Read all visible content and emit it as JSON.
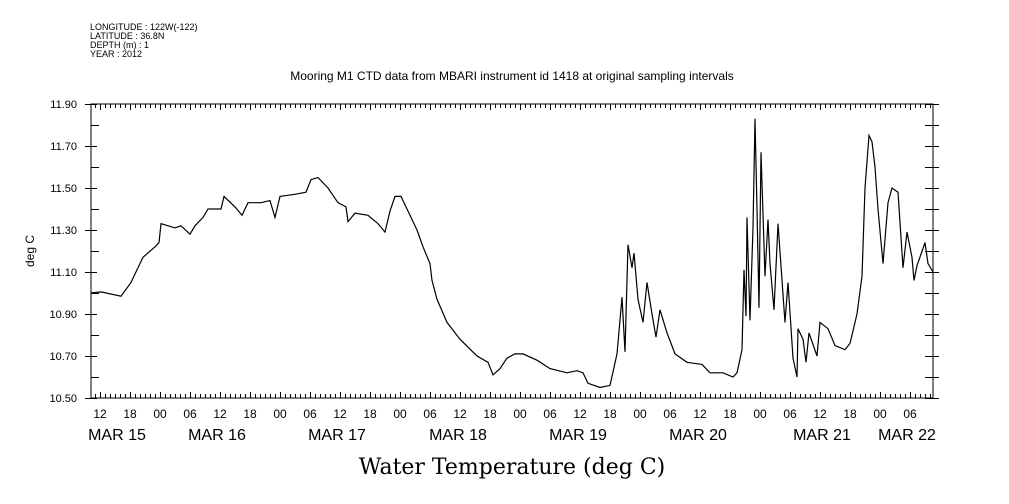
{
  "meta": {
    "longitude": "LONGITUDE : 122W(-122)",
    "latitude": "LATITUDE : 36.8N",
    "depth": "DEPTH (m) : 1",
    "year": "YEAR : 2012"
  },
  "chart_data": {
    "type": "line",
    "title": "Mooring M1 CTD data from MBARI instrument id 1418 at original sampling intervals",
    "xlabel": "Water Temperature (deg C)",
    "ylabel": "deg C",
    "x_units": "hours since MAR 15 00:00 (2012)",
    "xlim": [
      10.2,
      178.6
    ],
    "ylim": [
      10.5,
      11.9
    ],
    "y_ticks": [
      "10.50",
      "10.70",
      "10.90",
      "11.10",
      "11.30",
      "11.50",
      "11.70",
      "11.90"
    ],
    "y_tick_values": [
      10.5,
      10.7,
      10.9,
      11.1,
      11.3,
      11.5,
      11.7,
      11.9
    ],
    "x_hour_tick_values": [
      12,
      18,
      24,
      30,
      36,
      42,
      48,
      54,
      60,
      66,
      72,
      78,
      84,
      90,
      96,
      102,
      108,
      114,
      120,
      126,
      132,
      138,
      144,
      150,
      156,
      162,
      168,
      174
    ],
    "x_hour_ticks": [
      "12",
      "18",
      "00",
      "06",
      "12",
      "18",
      "00",
      "06",
      "12",
      "18",
      "00",
      "06",
      "12",
      "18",
      "00",
      "06",
      "12",
      "18",
      "00",
      "06",
      "12",
      "18",
      "00",
      "06",
      "12",
      "18",
      "00",
      "06"
    ],
    "x_date_labels": [
      "MAR 15",
      "MAR 16",
      "MAR 17",
      "MAR 18",
      "MAR 19",
      "MAR 20",
      "MAR 21",
      "MAR 22"
    ],
    "x_date_label_positions": [
      15.4,
      35.4,
      59.4,
      83.6,
      107.6,
      131.6,
      156.4,
      173.4
    ],
    "grid": false,
    "series": [
      {
        "name": "Water Temperature",
        "color": "#000000",
        "x": [
          10.2,
          12.2,
          16.2,
          18.2,
          20.6,
          23,
          23.8,
          24.2,
          27,
          28.2,
          30,
          31,
          32.6,
          33.6,
          36.2,
          36.8,
          39,
          40.4,
          41.6,
          44.2,
          46,
          47,
          48,
          51,
          53.2,
          54.2,
          55.6,
          57.6,
          59.6,
          61.2,
          61.6,
          63,
          65.6,
          67.6,
          69,
          70,
          71,
          72.2,
          72.6,
          74,
          75.4,
          76.6,
          78,
          78.4,
          79.4,
          81.4,
          84,
          87.4,
          89.6,
          90.6,
          92,
          93.4,
          95,
          96.6,
          99.4,
          102,
          105.4,
          107.4,
          108.6,
          109.6,
          112,
          114,
          115.4,
          116.4,
          117,
          117.6,
          118.4,
          118.8,
          119.6,
          120.6,
          121.4,
          122.4,
          123.2,
          124,
          125.4,
          127,
          129.4,
          132.4,
          134,
          136.6,
          138.6,
          139.4,
          140.4,
          140.8,
          141.2,
          141.4,
          142,
          142.6,
          143,
          143.4,
          143.8,
          144.2,
          145,
          145.6,
          146,
          146.8,
          147.6,
          149,
          149.6,
          150.6,
          151.4,
          151.6,
          152.6,
          153.2,
          153.8,
          155.4,
          156,
          157.6,
          159,
          161,
          162,
          163.4,
          164.4,
          165,
          165.8,
          166.4,
          167,
          167.6,
          168.6,
          169.6,
          170.4,
          171.6,
          172.6,
          173.4,
          174.4,
          174.8,
          175.4,
          177,
          177.6,
          178.6
        ],
        "y": [
          11.0,
          11.005,
          10.985,
          11.05,
          11.17,
          11.22,
          11.24,
          11.33,
          11.31,
          11.32,
          11.28,
          11.32,
          11.36,
          11.4,
          11.4,
          11.46,
          11.41,
          11.37,
          11.43,
          11.43,
          11.44,
          11.36,
          11.46,
          11.47,
          11.48,
          11.54,
          11.55,
          11.5,
          11.43,
          11.41,
          11.34,
          11.38,
          11.37,
          11.33,
          11.29,
          11.39,
          11.46,
          11.46,
          11.44,
          11.37,
          11.3,
          11.22,
          11.14,
          11.06,
          10.97,
          10.86,
          10.78,
          10.7,
          10.67,
          10.61,
          10.64,
          10.69,
          10.71,
          10.71,
          10.68,
          10.64,
          10.62,
          10.63,
          10.62,
          10.57,
          10.55,
          10.56,
          10.71,
          10.98,
          10.72,
          11.23,
          11.12,
          11.19,
          10.97,
          10.86,
          11.05,
          10.9,
          10.79,
          10.92,
          10.81,
          10.71,
          10.67,
          10.66,
          10.62,
          10.62,
          10.6,
          10.62,
          10.73,
          11.11,
          10.89,
          11.36,
          10.87,
          11.31,
          11.83,
          11.4,
          10.93,
          11.67,
          11.08,
          11.35,
          11.14,
          10.92,
          11.33,
          10.86,
          11.05,
          10.69,
          10.6,
          10.83,
          10.78,
          10.67,
          10.81,
          10.7,
          10.86,
          10.83,
          10.75,
          10.73,
          10.76,
          10.9,
          11.08,
          11.5,
          11.75,
          11.72,
          11.6,
          11.4,
          11.14,
          11.43,
          11.5,
          11.48,
          11.12,
          11.29,
          11.17,
          11.06,
          11.13,
          11.24,
          11.14,
          11.1
        ]
      }
    ]
  }
}
